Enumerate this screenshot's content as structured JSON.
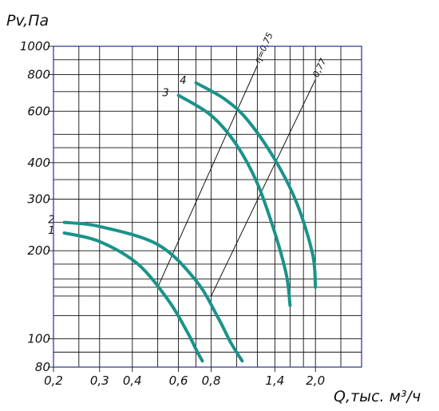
{
  "chart_data": {
    "type": "line",
    "title": "",
    "xlabel": "Q,тыс. м³/ч",
    "ylabel": "Pv,Па",
    "grid": true,
    "xlim": [
      0.2,
      3.0
    ],
    "ylim": [
      80,
      1000
    ],
    "x_scale": "log",
    "y_scale": "log",
    "x_ticks": [
      {
        "value": 0.2,
        "label": "0,2"
      },
      {
        "value": 0.3,
        "label": "0,3"
      },
      {
        "value": 0.4,
        "label": "0,4"
      },
      {
        "value": 0.6,
        "label": "0,6"
      },
      {
        "value": 0.8,
        "label": "0,8"
      },
      {
        "value": 1.4,
        "label": "1,4"
      },
      {
        "value": 2.0,
        "label": "2,0"
      }
    ],
    "x_gridlines": [
      0.2,
      0.25,
      0.3,
      0.4,
      0.5,
      0.6,
      0.7,
      0.8,
      1.0,
      1.2,
      1.4,
      1.6,
      1.8,
      2.0,
      2.5,
      3.0
    ],
    "y_ticks": [
      {
        "value": 80,
        "label": "80"
      },
      {
        "value": 100,
        "label": "100"
      },
      {
        "value": 200,
        "label": "200"
      },
      {
        "value": 300,
        "label": "300"
      },
      {
        "value": 400,
        "label": "400"
      },
      {
        "value": 600,
        "label": "600"
      },
      {
        "value": 800,
        "label": "800"
      },
      {
        "value": 1000,
        "label": "1000"
      }
    ],
    "y_gridlines": [
      80,
      90,
      100,
      120,
      140,
      150,
      160,
      180,
      200,
      250,
      300,
      350,
      400,
      450,
      500,
      600,
      700,
      800,
      900,
      1000
    ],
    "series": [
      {
        "name": "1",
        "color": "#1a9389",
        "x": [
          0.22,
          0.3,
          0.42,
          0.55,
          0.65,
          0.7,
          0.74
        ],
        "y": [
          230,
          215,
          180,
          135,
          105,
          92,
          84
        ]
      },
      {
        "name": "2",
        "color": "#1a9389",
        "x": [
          0.22,
          0.3,
          0.5,
          0.7,
          0.85,
          0.95,
          1.05
        ],
        "y": [
          250,
          242,
          210,
          158,
          118,
          97,
          84
        ]
      },
      {
        "name": "3",
        "color": "#1a9389",
        "x": [
          0.6,
          0.8,
          1.0,
          1.2,
          1.4,
          1.55,
          1.6
        ],
        "y": [
          680,
          580,
          460,
          340,
          230,
          165,
          130
        ]
      },
      {
        "name": "4",
        "color": "#1a9389",
        "x": [
          0.7,
          0.9,
          1.1,
          1.4,
          1.7,
          1.95,
          2.0
        ],
        "y": [
          750,
          660,
          560,
          410,
          290,
          195,
          150
        ]
      }
    ],
    "reference_lines": [
      {
        "label": "η=0,75",
        "x": [
          0.5,
          1.2
        ],
        "y": [
          150,
          860
        ]
      },
      {
        "label": "0,77",
        "x": [
          0.8,
          2.0
        ],
        "y": [
          140,
          770
        ]
      }
    ]
  }
}
